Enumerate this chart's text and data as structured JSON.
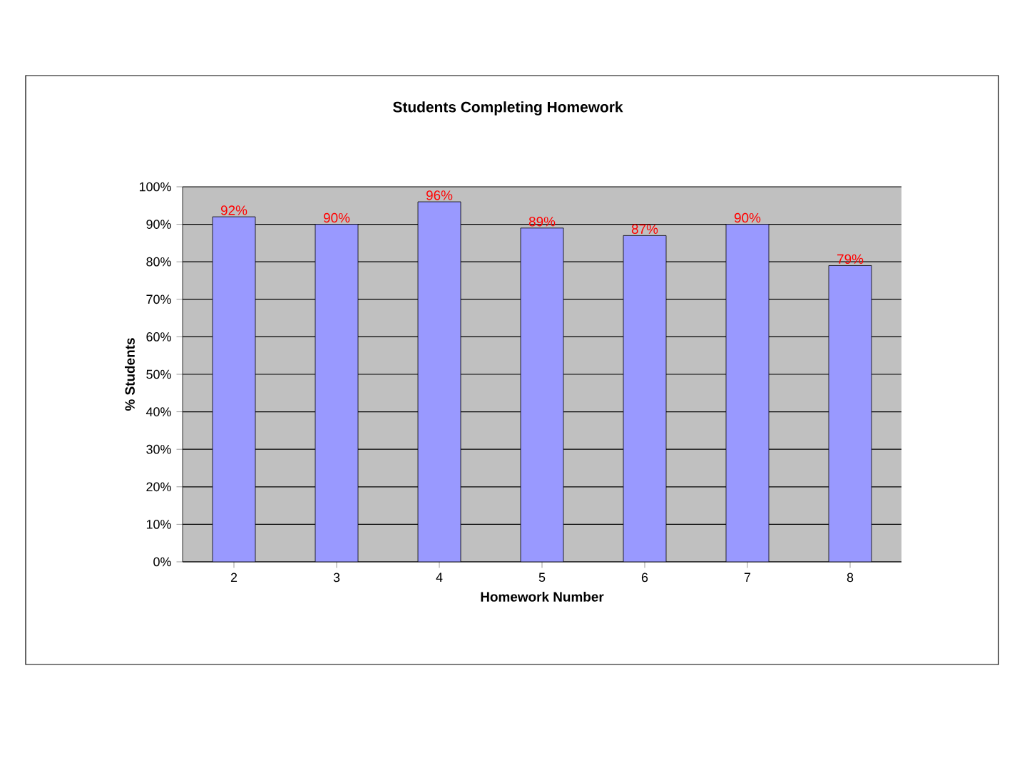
{
  "chart_data": {
    "type": "bar",
    "title": "Students Completing Homework",
    "xlabel": "Homework Number",
    "ylabel": "% Students",
    "categories": [
      "2",
      "3",
      "4",
      "5",
      "6",
      "7",
      "8"
    ],
    "values": [
      92,
      90,
      96,
      89,
      87,
      90,
      79
    ],
    "value_labels": [
      "92%",
      "90%",
      "96%",
      "89%",
      "87%",
      "90%",
      "79%"
    ],
    "color": "#9999ff",
    "ylim": [
      0,
      100
    ],
    "yticks": [
      {
        "value": 0,
        "label": "0%"
      },
      {
        "value": 10,
        "label": "10%"
      },
      {
        "value": 20,
        "label": "20%"
      },
      {
        "value": 30,
        "label": "30%"
      },
      {
        "value": 40,
        "label": "40%"
      },
      {
        "value": 50,
        "label": "50%"
      },
      {
        "value": 60,
        "label": "60%"
      },
      {
        "value": 70,
        "label": "70%"
      },
      {
        "value": 80,
        "label": "80%"
      },
      {
        "value": 90,
        "label": "90%"
      },
      {
        "value": 100,
        "label": "100%"
      }
    ],
    "grid": "y"
  }
}
